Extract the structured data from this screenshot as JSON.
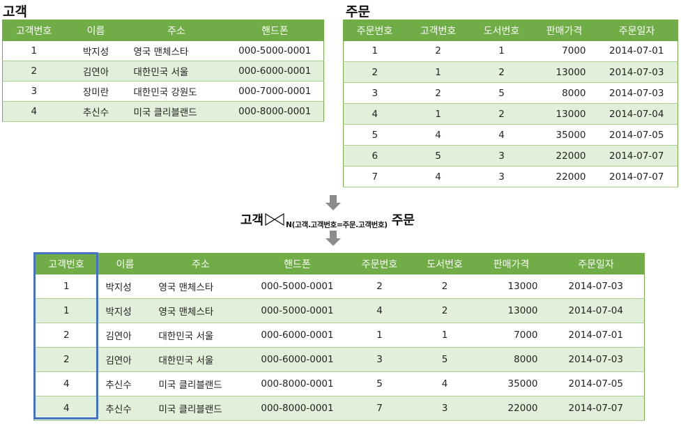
{
  "customer": {
    "label": "고객",
    "headers": [
      "고객번호",
      "이름",
      "주소",
      "핸드폰"
    ],
    "rows": [
      [
        "1",
        "박지성",
        "영국 맨체스타",
        "000-5000-0001"
      ],
      [
        "2",
        "김연아",
        "대한민국 서울",
        "000-6000-0001"
      ],
      [
        "3",
        "장미란",
        "대한민국 강원도",
        "000-7000-0001"
      ],
      [
        "4",
        "추신수",
        "미국 클리블랜드",
        "000-8000-0001"
      ]
    ]
  },
  "order": {
    "label": "주문",
    "headers": [
      "주문번호",
      "고객번호",
      "도서번호",
      "판매가격",
      "주문일자"
    ],
    "rows": [
      [
        "1",
        "2",
        "1",
        "7000",
        "2014-07-01"
      ],
      [
        "2",
        "1",
        "2",
        "13000",
        "2014-07-03"
      ],
      [
        "3",
        "2",
        "5",
        "8000",
        "2014-07-03"
      ],
      [
        "4",
        "1",
        "2",
        "13000",
        "2014-07-04"
      ],
      [
        "5",
        "4",
        "4",
        "35000",
        "2014-07-05"
      ],
      [
        "6",
        "5",
        "3",
        "22000",
        "2014-07-07"
      ],
      [
        "7",
        "4",
        "3",
        "22000",
        "2014-07-07"
      ]
    ]
  },
  "formula": {
    "left": "고객",
    "condition": "N(고객.고객번호=주문.고객번호)",
    "right": "주문"
  },
  "result": {
    "headers": [
      "고객번호",
      "이름",
      "주소",
      "핸드폰",
      "주문번호",
      "도서번호",
      "판매가격",
      "주문일자"
    ],
    "rows": [
      [
        "1",
        "박지성",
        "영국 맨체스타",
        "000-5000-0001",
        "2",
        "2",
        "13000",
        "2014-07-03"
      ],
      [
        "1",
        "박지성",
        "영국 맨체스타",
        "000-5000-0001",
        "4",
        "2",
        "13000",
        "2014-07-04"
      ],
      [
        "2",
        "김연아",
        "대한민국 서울",
        "000-6000-0001",
        "1",
        "1",
        "7000",
        "2014-07-01"
      ],
      [
        "2",
        "김연아",
        "대한민국 서울",
        "000-6000-0001",
        "3",
        "5",
        "8000",
        "2014-07-03"
      ],
      [
        "4",
        "추신수",
        "미국 클리블랜드",
        "000-8000-0001",
        "5",
        "4",
        "35000",
        "2014-07-05"
      ],
      [
        "4",
        "추신수",
        "미국 클리블랜드",
        "000-8000-0001",
        "7",
        "3",
        "22000",
        "2014-07-07"
      ]
    ]
  },
  "colors": {
    "header_green": "#70ad47",
    "band_green": "#e2efda",
    "highlight_blue": "#4472c4",
    "arrow_gray": "#8c8c8c"
  }
}
